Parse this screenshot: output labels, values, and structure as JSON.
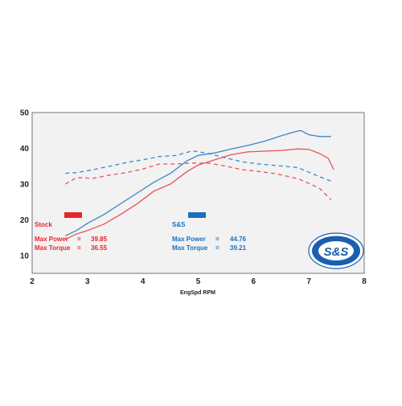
{
  "chart_data": {
    "type": "line",
    "title": "",
    "xlabel": "EngSpd RPM",
    "ylabel": "",
    "xlim": [
      2,
      8
    ],
    "ylim": [
      5,
      50
    ],
    "x_ticks": [
      2,
      3,
      4,
      5,
      6,
      7,
      8
    ],
    "y_ticks": [
      10,
      20,
      30,
      40,
      50
    ],
    "grid": false,
    "series": [
      {
        "key": "ss_power",
        "color": "#3a86c8",
        "dash": false,
        "x": [
          2.6,
          2.8,
          3.0,
          3.3,
          3.6,
          3.9,
          4.2,
          4.5,
          4.8,
          5.0,
          5.3,
          5.6,
          5.9,
          6.2,
          6.5,
          6.7,
          6.85,
          7.0,
          7.2,
          7.4
        ],
        "y": [
          15.5,
          17.0,
          19.0,
          21.5,
          24.5,
          27.5,
          30.5,
          33.0,
          36.5,
          38.0,
          38.7,
          39.8,
          40.8,
          42.0,
          43.5,
          44.4,
          45.0,
          43.8,
          43.3,
          43.3
        ]
      },
      {
        "key": "ss_torque",
        "color": "#3a86c8",
        "dash": true,
        "x": [
          2.6,
          2.8,
          3.1,
          3.4,
          3.7,
          4.0,
          4.3,
          4.6,
          4.9,
          5.2,
          5.5,
          5.8,
          6.1,
          6.4,
          6.8,
          7.0,
          7.2,
          7.4
        ],
        "y": [
          33.0,
          33.2,
          34.0,
          35.0,
          36.0,
          36.8,
          37.7,
          38.0,
          39.3,
          38.5,
          37.3,
          36.2,
          35.6,
          35.2,
          34.6,
          33.3,
          32.0,
          30.8
        ]
      },
      {
        "key": "stock_power",
        "color": "#e8525a",
        "dash": false,
        "x": [
          2.6,
          2.8,
          3.0,
          3.3,
          3.6,
          3.9,
          4.2,
          4.5,
          4.8,
          5.0,
          5.3,
          5.6,
          5.9,
          6.2,
          6.5,
          6.8,
          7.0,
          7.2,
          7.35,
          7.45
        ],
        "y": [
          14.5,
          16.0,
          17.0,
          18.8,
          21.5,
          24.5,
          28.0,
          30.0,
          33.5,
          35.3,
          36.8,
          38.2,
          39.0,
          39.2,
          39.4,
          39.8,
          39.7,
          38.5,
          37.2,
          34.0
        ]
      },
      {
        "key": "stock_torque",
        "color": "#e8525a",
        "dash": true,
        "x": [
          2.6,
          2.8,
          3.1,
          3.4,
          3.7,
          4.0,
          4.3,
          4.6,
          4.9,
          5.2,
          5.5,
          5.8,
          6.1,
          6.4,
          6.8,
          7.0,
          7.2,
          7.4
        ],
        "y": [
          30.0,
          31.8,
          31.6,
          32.5,
          33.2,
          34.2,
          35.6,
          35.6,
          35.9,
          35.8,
          35.0,
          34.0,
          33.5,
          32.9,
          31.5,
          30.2,
          28.7,
          25.6
        ]
      }
    ],
    "stock_label": "Stock",
    "ss_label": "S&S",
    "stock_color": "#e8252b",
    "ss_color": "#1a70c0",
    "stats": {
      "stock": [
        {
          "label": "Max Power",
          "eq": "=",
          "value": "39.85"
        },
        {
          "label": "Max Torque",
          "eq": "=",
          "value": "36.55"
        }
      ],
      "ss": [
        {
          "label": "Max Power",
          "eq": "=",
          "value": "44.76"
        },
        {
          "label": "Max Torque",
          "eq": "=",
          "value": "39.21"
        }
      ]
    },
    "logo": {
      "icon": "ss-performance-badge",
      "text": "S&S",
      "small_text": "PROVEN PERFORMANCE",
      "color": "#1a5fb0"
    }
  }
}
